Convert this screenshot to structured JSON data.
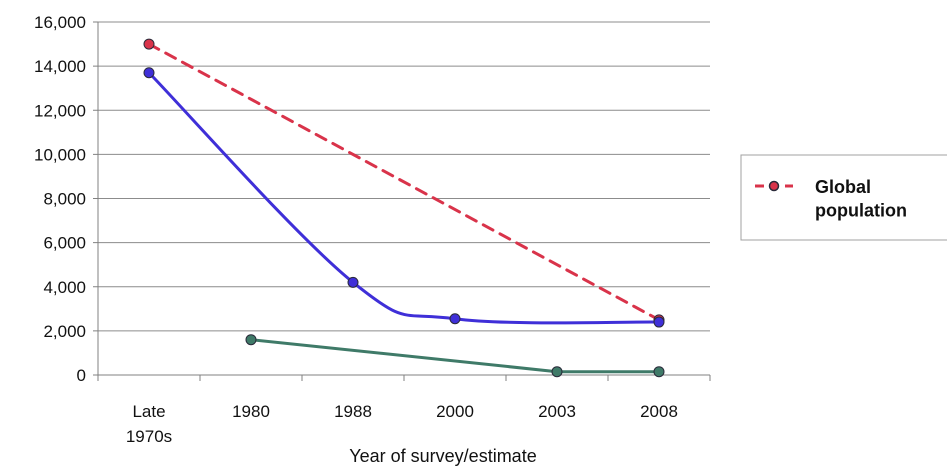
{
  "chart_data": {
    "type": "line",
    "categories": [
      "Late 1970s",
      "1980",
      "1988",
      "2000",
      "2003",
      "2008"
    ],
    "category_lines": [
      [
        "Late",
        "1970s"
      ],
      [
        "1980"
      ],
      [
        "1988"
      ],
      [
        "2000"
      ],
      [
        "2003"
      ],
      [
        "2008"
      ]
    ],
    "xlabel": "Year of survey/estimate",
    "ylabel": "",
    "ylim": [
      0,
      16000
    ],
    "yticks": [
      "0",
      "2,000",
      "4,000",
      "6,000",
      "8,000",
      "10,000",
      "12,000",
      "14,000",
      "16,000"
    ],
    "ytick_values": [
      0,
      2000,
      4000,
      6000,
      8000,
      10000,
      12000,
      14000,
      16000
    ],
    "grid": "horizontal",
    "legend_position": "right",
    "series": [
      {
        "name": "Global population",
        "color": "#d9334a",
        "style": "dashed",
        "smooth": false,
        "in_legend": true,
        "points": [
          {
            "category": "Late 1970s",
            "value": 15000
          },
          {
            "category": "2008",
            "value": 2500
          }
        ]
      },
      {
        "color": "#3f2fd8",
        "style": "solid",
        "smooth": true,
        "in_legend": false,
        "points": [
          {
            "category": "Late 1970s",
            "value": 13700
          },
          {
            "category": "1988",
            "value": 4200
          },
          {
            "category": "2000",
            "value": 2550
          },
          {
            "category": "2008",
            "value": 2400
          }
        ]
      },
      {
        "color": "#3f7a68",
        "style": "solid",
        "smooth": false,
        "in_legend": false,
        "points": [
          {
            "category": "1980",
            "value": 1600
          },
          {
            "category": "2003",
            "value": 150
          },
          {
            "category": "2008",
            "value": 150
          }
        ]
      }
    ]
  }
}
